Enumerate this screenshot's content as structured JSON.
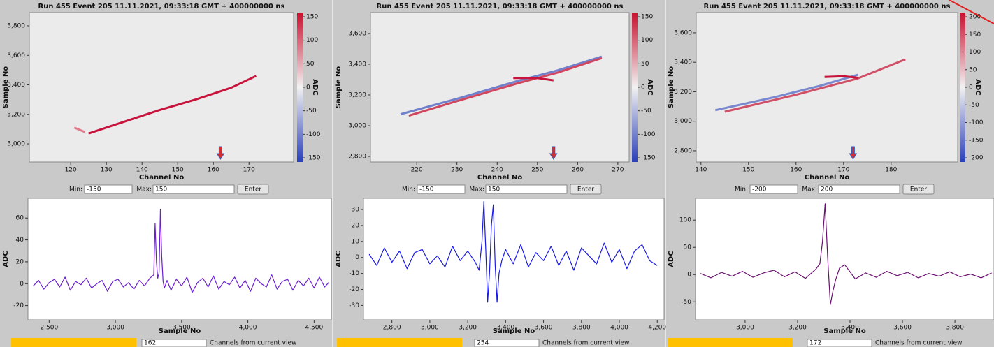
{
  "chart_data": [
    {
      "type": "heatmap",
      "title": "Run 455 Event 205 11.11.2021, 09:33:18 GMT + 400000000 ns",
      "x_label": "Channel No",
      "y_label": "Sample No",
      "xlim": [
        108.4,
        182.5
      ],
      "xticks": [
        120,
        130,
        140,
        150,
        160,
        170
      ],
      "ylim": [
        2877,
        3890
      ],
      "yticks": [
        {
          "value": 3000,
          "label": "3,000"
        },
        {
          "value": 3200,
          "label": "3,200"
        },
        {
          "value": 3400,
          "label": "3,400"
        },
        {
          "value": 3600,
          "label": "3,600"
        },
        {
          "value": 3800,
          "label": "3,800"
        }
      ],
      "colorbar": {
        "label": "ADC",
        "lim": [
          -150,
          150
        ],
        "ticks": [
          -150,
          -100,
          -50,
          0,
          50,
          100,
          150
        ]
      },
      "series": [
        {
          "color": "#c8143c",
          "x": [
            125,
            135,
            145,
            155,
            165,
            172
          ],
          "values": [
            3070,
            3150,
            3230,
            3300,
            3380,
            3460
          ]
        },
        {
          "color": "#e07a8a",
          "x": [
            121,
            124
          ],
          "values": [
            3110,
            3080
          ]
        }
      ]
    },
    {
      "type": "line",
      "x_label": "Sample No",
      "y_label": "ADC",
      "xlim": [
        2340,
        4630
      ],
      "xticks": [
        {
          "value": 2500,
          "label": "2,500"
        },
        {
          "value": 3000,
          "label": "3,000"
        },
        {
          "value": 3500,
          "label": "3,500"
        },
        {
          "value": 4000,
          "label": "4,000"
        },
        {
          "value": 4500,
          "label": "4,500"
        }
      ],
      "ylim": [
        -33,
        78
      ],
      "yticks": [
        -20,
        0,
        20,
        40,
        60
      ],
      "series": [
        {
          "color": "#6a1fd0",
          "x": [
            2380,
            2420,
            2460,
            2500,
            2540,
            2580,
            2620,
            2660,
            2700,
            2740,
            2780,
            2820,
            2860,
            2900,
            2940,
            2980,
            3020,
            3060,
            3100,
            3140,
            3180,
            3220,
            3260,
            3290,
            3300,
            3310,
            3320,
            3330,
            3340,
            3350,
            3360,
            3370,
            3390,
            3420,
            3460,
            3500,
            3540,
            3580,
            3620,
            3660,
            3700,
            3740,
            3780,
            3820,
            3860,
            3900,
            3940,
            3980,
            4020,
            4060,
            4100,
            4140,
            4180,
            4220,
            4260,
            4300,
            4340,
            4380,
            4420,
            4460,
            4500,
            4540,
            4580,
            4610
          ],
          "values": [
            -2,
            3,
            -5,
            1,
            4,
            -3,
            6,
            -6,
            2,
            -1,
            5,
            -4,
            0,
            3,
            -7,
            2,
            4,
            -3,
            1,
            -5,
            3,
            -2,
            5,
            8,
            55,
            20,
            5,
            10,
            68,
            25,
            2,
            -4,
            3,
            -6,
            4,
            -2,
            6,
            -8,
            1,
            5,
            -3,
            7,
            -5,
            2,
            -1,
            6,
            -4,
            3,
            -7,
            5,
            0,
            -3,
            8,
            -5,
            2,
            4,
            -6,
            3,
            -2,
            5,
            -4,
            6,
            -3,
            1
          ]
        }
      ]
    },
    {
      "type": "heatmap",
      "title": "Run 455 Event 205 11.11.2021, 09:33:18 GMT + 400000000 ns",
      "x_label": "Channel No",
      "y_label": "Sample No",
      "xlim": [
        208.5,
        272.8
      ],
      "xticks": [
        220,
        230,
        240,
        250,
        260,
        270
      ],
      "ylim": [
        2764,
        3736
      ],
      "yticks": [
        {
          "value": 2800,
          "label": "2,800"
        },
        {
          "value": 3000,
          "label": "3,000"
        },
        {
          "value": 3200,
          "label": "3,200"
        },
        {
          "value": 3400,
          "label": "3,400"
        },
        {
          "value": 3600,
          "label": "3,600"
        }
      ],
      "colorbar": {
        "label": "ADC",
        "lim": [
          -150,
          150
        ],
        "ticks": [
          -150,
          -100,
          -50,
          0,
          50,
          100,
          150
        ]
      },
      "series": [
        {
          "color": "#7080cc",
          "x": [
            216,
            230,
            245,
            255,
            266
          ],
          "values": [
            3075,
            3175,
            3290,
            3360,
            3450
          ]
        },
        {
          "color": "#d0465e",
          "x": [
            218,
            230,
            245,
            255,
            266
          ],
          "values": [
            3065,
            3160,
            3275,
            3345,
            3440
          ]
        },
        {
          "color": "#c8143c",
          "x": [
            244,
            250,
            254
          ],
          "values": [
            3310,
            3310,
            3295
          ]
        }
      ]
    },
    {
      "type": "line",
      "x_label": "Sample No",
      "y_label": "ADC",
      "xlim": [
        2650,
        4236
      ],
      "xticks": [
        {
          "value": 2800,
          "label": "2,800"
        },
        {
          "value": 3000,
          "label": "3,000"
        },
        {
          "value": 3200,
          "label": "3,200"
        },
        {
          "value": 3400,
          "label": "3,400"
        },
        {
          "value": 3600,
          "label": "3,600"
        },
        {
          "value": 3800,
          "label": "3,800"
        },
        {
          "value": 4000,
          "label": "4,000"
        },
        {
          "value": 4200,
          "label": "4,200"
        }
      ],
      "ylim": [
        -39,
        37
      ],
      "yticks": [
        -30,
        -20,
        -10,
        0,
        10,
        20,
        30
      ],
      "series": [
        {
          "color": "#1a1ae8",
          "x": [
            2680,
            2720,
            2760,
            2800,
            2840,
            2880,
            2920,
            2960,
            3000,
            3040,
            3080,
            3120,
            3160,
            3200,
            3240,
            3260,
            3275,
            3285,
            3295,
            3305,
            3315,
            3325,
            3335,
            3345,
            3355,
            3365,
            3380,
            3400,
            3440,
            3480,
            3520,
            3560,
            3600,
            3640,
            3680,
            3720,
            3760,
            3800,
            3840,
            3880,
            3920,
            3960,
            4000,
            4040,
            4080,
            4120,
            4160,
            4200
          ],
          "values": [
            2,
            -5,
            6,
            -3,
            4,
            -7,
            3,
            5,
            -4,
            1,
            -6,
            7,
            -2,
            4,
            -3,
            -8,
            10,
            35,
            5,
            -28,
            -10,
            20,
            33,
            -5,
            -28,
            -10,
            -2,
            5,
            -4,
            8,
            -6,
            3,
            -2,
            7,
            -5,
            4,
            -8,
            6,
            1,
            -4,
            9,
            -3,
            5,
            -7,
            4,
            8,
            -2,
            -5
          ]
        }
      ]
    },
    {
      "type": "heatmap",
      "title": "Run 455 Event 205 11.11.2021, 09:33:18 GMT + 400000000 ns",
      "x_label": "Channel No",
      "y_label": "Sample No",
      "xlim": [
        139,
        194
      ],
      "xticks": [
        140,
        150,
        160,
        170,
        180
      ],
      "ylim": [
        2724,
        3737
      ],
      "yticks": [
        {
          "value": 2800,
          "label": "2,800"
        },
        {
          "value": 3000,
          "label": "3,000"
        },
        {
          "value": 3200,
          "label": "3,200"
        },
        {
          "value": 3400,
          "label": "3,400"
        },
        {
          "value": 3600,
          "label": "3,600"
        }
      ],
      "colorbar": {
        "label": "ADC",
        "lim": [
          -200,
          200
        ],
        "ticks": [
          -200,
          -150,
          -100,
          -50,
          0,
          50,
          100,
          150,
          200
        ]
      },
      "series": [
        {
          "color": "#7a88d0",
          "x": [
            143,
            155,
            165,
            173
          ],
          "values": [
            3075,
            3160,
            3240,
            3315
          ]
        },
        {
          "color": "#d05068",
          "x": [
            145,
            160,
            173,
            183
          ],
          "values": [
            3065,
            3180,
            3290,
            3420
          ]
        },
        {
          "color": "#c8143c",
          "x": [
            166,
            170,
            173
          ],
          "values": [
            3300,
            3305,
            3295
          ]
        }
      ]
    },
    {
      "type": "line",
      "x_label": "Sample No",
      "y_label": "ADC",
      "xlim": [
        2811,
        3949
      ],
      "xticks": [
        {
          "value": 3000,
          "label": "3,000"
        },
        {
          "value": 3200,
          "label": "3,200"
        },
        {
          "value": 3400,
          "label": "3,400"
        },
        {
          "value": 3600,
          "label": "3,600"
        },
        {
          "value": 3800,
          "label": "3,800"
        }
      ],
      "ylim": [
        -83,
        140
      ],
      "yticks": [
        -50,
        0,
        50,
        100
      ],
      "series": [
        {
          "color": "#6a1070",
          "x": [
            2830,
            2870,
            2910,
            2950,
            2990,
            3030,
            3070,
            3110,
            3150,
            3190,
            3230,
            3270,
            3285,
            3295,
            3305,
            3315,
            3325,
            3335,
            3345,
            3360,
            3380,
            3400,
            3420,
            3460,
            3500,
            3540,
            3580,
            3620,
            3660,
            3700,
            3740,
            3780,
            3820,
            3860,
            3900,
            3940
          ],
          "values": [
            2,
            -6,
            4,
            -3,
            6,
            -5,
            3,
            8,
            -4,
            5,
            -7,
            10,
            20,
            60,
            130,
            30,
            -55,
            -30,
            -10,
            12,
            18,
            5,
            -8,
            3,
            -5,
            6,
            -2,
            4,
            -6,
            2,
            -3,
            5,
            -4,
            1,
            -6,
            3
          ]
        }
      ]
    }
  ],
  "controls": [
    {
      "min_label": "Min:",
      "min": -150,
      "max_label": "Max:",
      "max": 150,
      "button": "Enter",
      "channel": 162,
      "channels_note": "Channels from current view"
    },
    {
      "min_label": "Min:",
      "min": -150,
      "max_label": "Max:",
      "max": 150,
      "button": "Enter",
      "channel": 254,
      "channels_note": "Channels from current view"
    },
    {
      "min_label": "Min:",
      "min": -200,
      "max_label": "Max:",
      "max": 200,
      "button": "Enter",
      "channel": 172,
      "channels_note": "Channels from current view"
    }
  ]
}
